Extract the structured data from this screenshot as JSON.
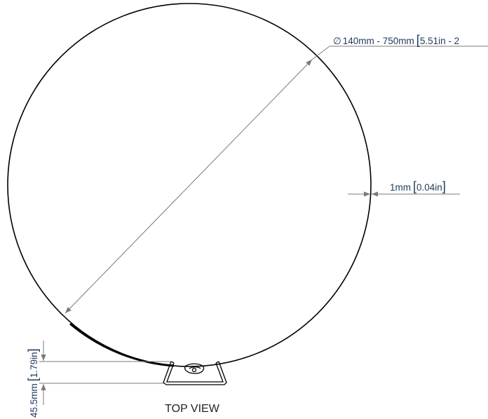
{
  "diameter_dimension": {
    "symbol": "∅",
    "metric": "140mm - 750mm",
    "imperial": "5.51in - 2"
  },
  "wall_thickness_dimension": {
    "metric": "1mm",
    "imperial": "0.04in"
  },
  "base_height_dimension": {
    "metric": "45.5mm",
    "imperial": "1.79in"
  },
  "view_label": "TOP VIEW",
  "colors": {
    "outline": "#000000",
    "dimension_line": "#7a7a7a",
    "dimension_text": "#1f3a5c",
    "label_text": "#222222"
  }
}
